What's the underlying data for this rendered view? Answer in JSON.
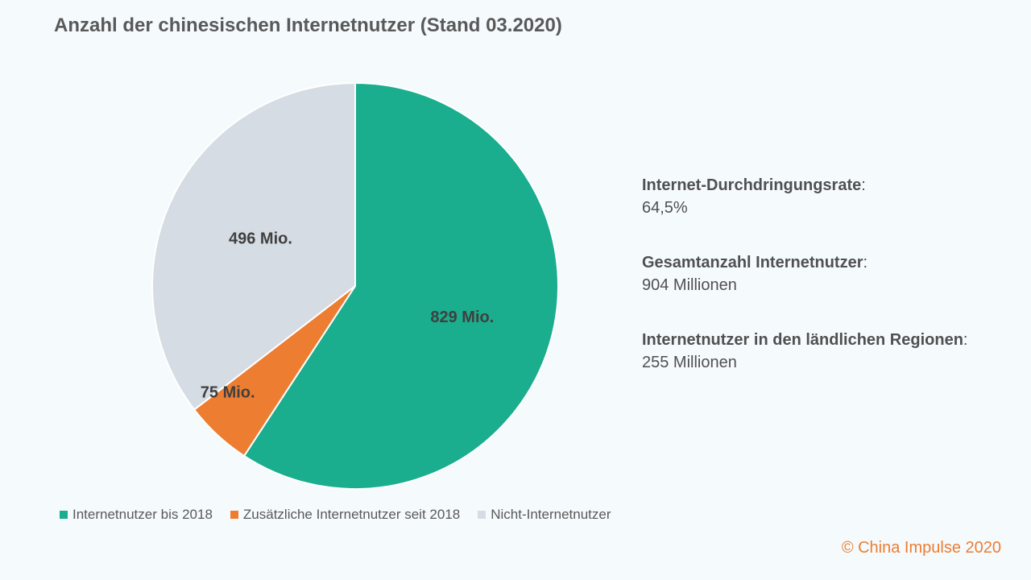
{
  "title": "Anzahl der chinesischen Internetnutzer (Stand 03.2020)",
  "chart_data": {
    "type": "pie",
    "title": "Anzahl der chinesischen Internetnutzer (Stand 03.2020)",
    "slices": [
      {
        "name": "Internetnutzer bis 2018",
        "value": 829,
        "label": "829 Mio.",
        "color": "#1aad8e"
      },
      {
        "name": "Zusätzliche Internetnutzer seit 2018",
        "value": 75,
        "label": "75 Mio.",
        "color": "#ed7d31"
      },
      {
        "name": "Nicht-Internetnutzer",
        "value": 496,
        "label": "496 Mio.",
        "color": "#d6dce4"
      }
    ],
    "legend_position": "bottom"
  },
  "stats": [
    {
      "label": "Internet-Durchdringungsrate",
      "value": "64,5%"
    },
    {
      "label": "Gesamtanzahl Internetnutzer",
      "value": "904 Millionen"
    },
    {
      "label": "Internetnutzer in den ländlichen Regionen",
      "value": "255 Millionen"
    }
  ],
  "copyright": "© China Impulse 2020"
}
